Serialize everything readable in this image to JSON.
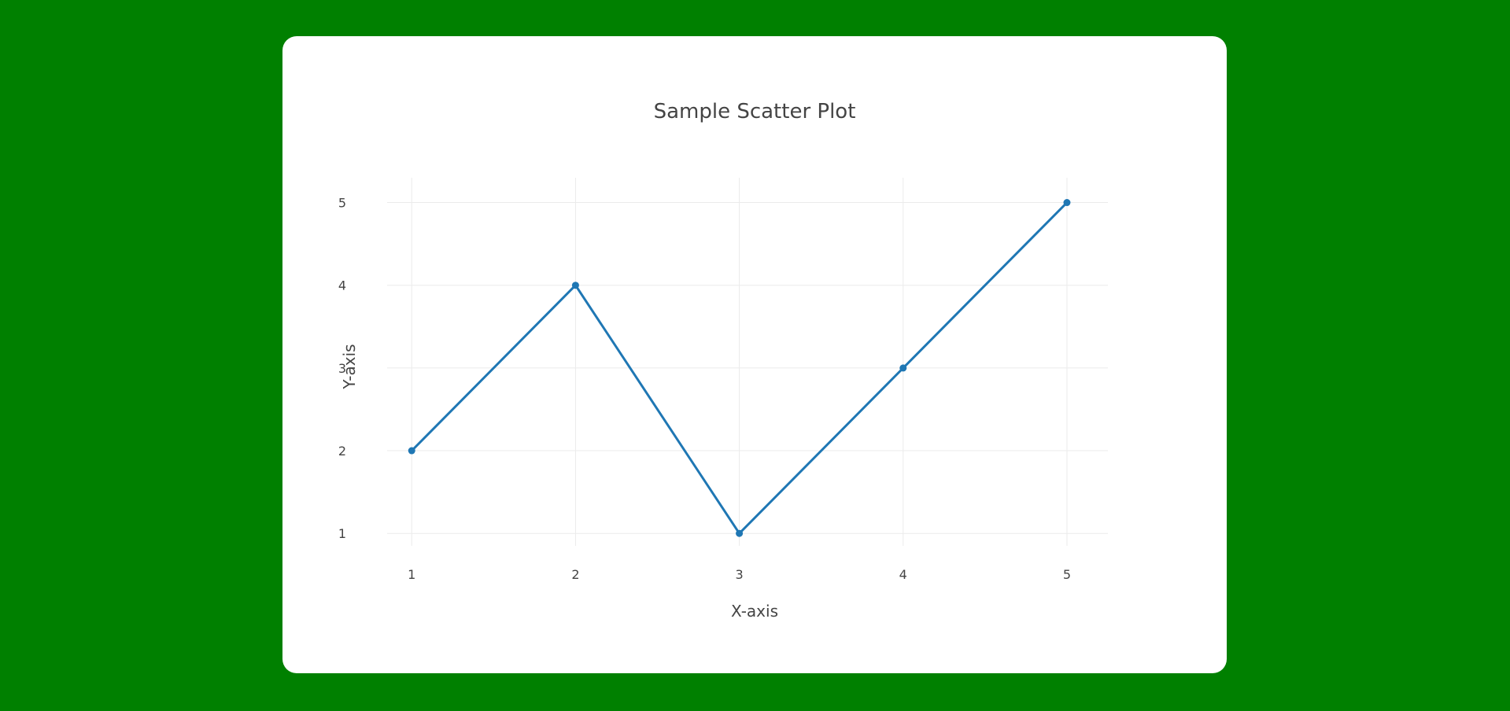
{
  "colors": {
    "page_background": "#008000",
    "card_background": "#ffffff",
    "series": "#1f77b4",
    "grid": "#ebebeb",
    "text": "#444444"
  },
  "chart_data": {
    "type": "line",
    "title": "Sample Scatter Plot",
    "xlabel": "X-axis",
    "ylabel": "Y-axis",
    "x": [
      1,
      2,
      3,
      4,
      5
    ],
    "series": [
      {
        "values": [
          2,
          4,
          1,
          3,
          5
        ],
        "mode": "lines+markers"
      }
    ],
    "xlim": [
      0.85,
      5.25
    ],
    "ylim": [
      0.85,
      5.3
    ],
    "xticks": [
      1,
      2,
      3,
      4,
      5
    ],
    "yticks": [
      1,
      2,
      3,
      4,
      5
    ],
    "xtick_labels": [
      "1",
      "2",
      "3",
      "4",
      "5"
    ],
    "ytick_labels": [
      "1",
      "2",
      "3",
      "4",
      "5"
    ],
    "grid": true,
    "legend": false
  }
}
